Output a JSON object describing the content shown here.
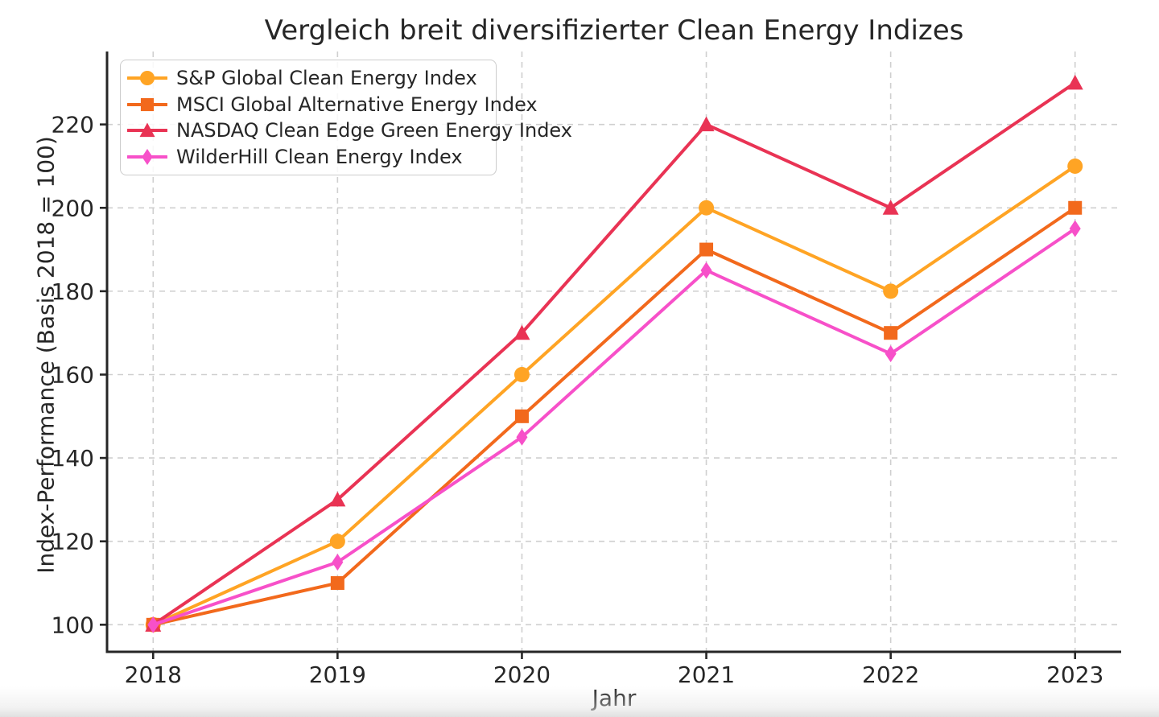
{
  "chart_data": {
    "type": "line",
    "title": "Vergleich breit diversifizierter Clean Energy Indizes",
    "xlabel": "Jahr",
    "ylabel": "Index-Performance (Basis 2018 = 100)",
    "x": [
      2018,
      2019,
      2020,
      2021,
      2022,
      2023
    ],
    "series": [
      {
        "name": "S&P Global Clean Energy Index",
        "color": "#FFA424",
        "marker": "circle",
        "values": [
          100,
          120,
          160,
          200,
          180,
          210
        ]
      },
      {
        "name": "MSCI Global Alternative Energy Index",
        "color": "#F2691C",
        "marker": "square",
        "values": [
          100,
          110,
          150,
          190,
          170,
          200
        ]
      },
      {
        "name": "NASDAQ Clean Edge Green Energy Index",
        "color": "#E93354",
        "marker": "triangle-up",
        "values": [
          100,
          130,
          170,
          220,
          200,
          230
        ]
      },
      {
        "name": "WilderHill Clean Energy Index",
        "color": "#F750C9",
        "marker": "thin-diamond",
        "values": [
          100,
          115,
          145,
          185,
          165,
          195
        ]
      }
    ],
    "yticks": [
      100,
      120,
      140,
      160,
      180,
      200,
      220
    ],
    "xticks": [
      2018,
      2019,
      2020,
      2021,
      2022,
      2023
    ],
    "ylim": [
      93.5,
      237.5
    ],
    "xlim": [
      2017.75,
      2023.25
    ],
    "grid": true,
    "grid_style": "dashed",
    "legend_position": "upper-left",
    "colors": {
      "grid": "#cfcfcf",
      "axis": "#262626",
      "text": "#262626",
      "background": "#ffffff"
    }
  }
}
